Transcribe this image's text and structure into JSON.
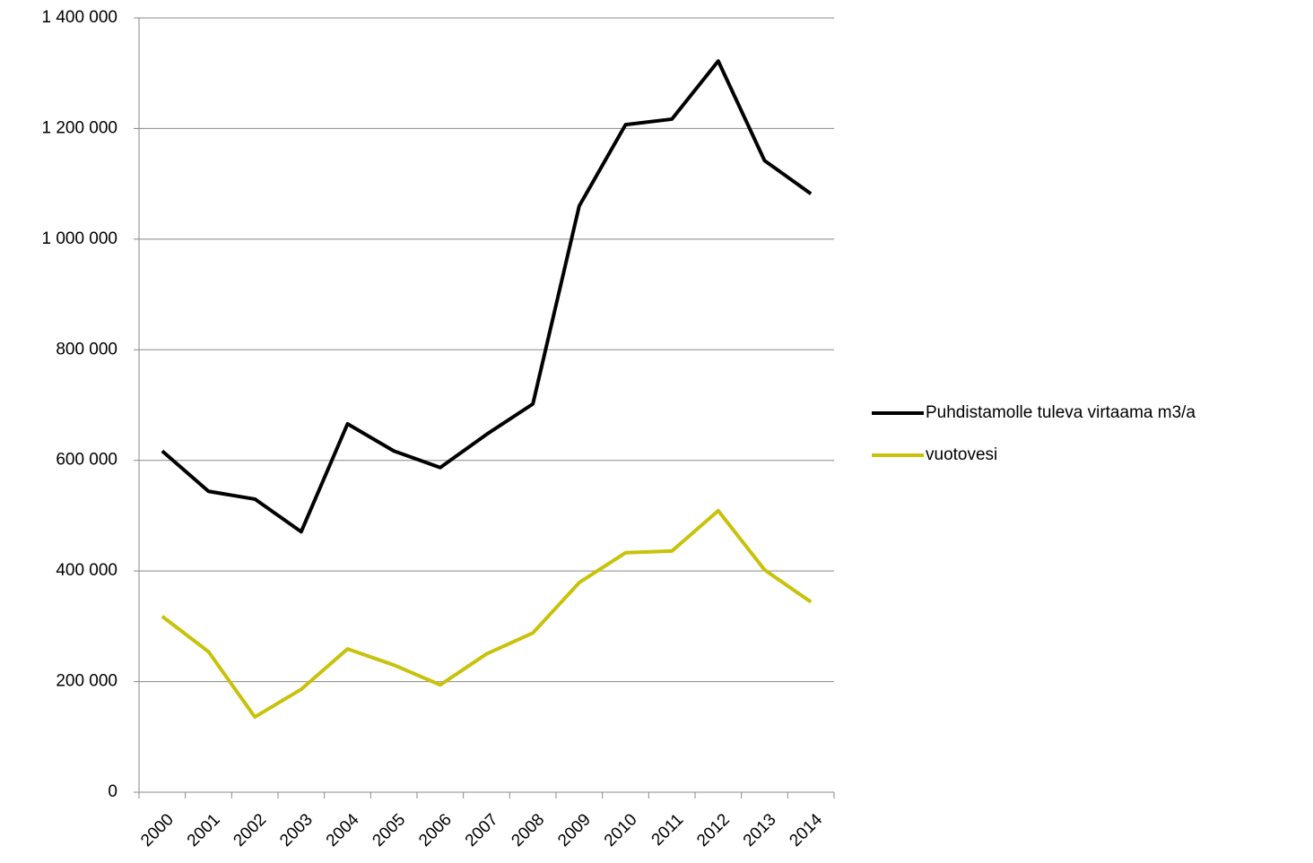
{
  "chart_data": {
    "type": "line",
    "categories": [
      "2000",
      "2001",
      "2002",
      "2003",
      "2004",
      "2005",
      "2006",
      "2007",
      "2008",
      "2009",
      "2010",
      "2011",
      "2012",
      "2013",
      "2014"
    ],
    "series": [
      {
        "name": "Puhdistamolle tuleva virtaama m3/a",
        "color": "#000000",
        "values": [
          617000,
          544000,
          530000,
          471000,
          666000,
          617000,
          587000,
          647000,
          702000,
          1060000,
          1207000,
          1217000,
          1322000,
          1142000,
          1082000
        ]
      },
      {
        "name": "vuotovesi",
        "color": "#c8c20a",
        "values": [
          318000,
          254000,
          136000,
          186000,
          259000,
          230000,
          194000,
          250000,
          288000,
          379000,
          433000,
          436000,
          509000,
          402000,
          344000
        ]
      }
    ],
    "ylim": [
      0,
      1400000
    ],
    "yticks": [
      0,
      {
        "value": 200000,
        "label": "200 000"
      },
      {
        "value": 400000,
        "label": "400 000"
      },
      {
        "value": 600000,
        "label": "600 000"
      },
      {
        "value": 800000,
        "label": "800 000"
      },
      {
        "value": 1000000,
        "label": "1 000 000"
      },
      {
        "value": 1200000,
        "label": "1 200 000"
      },
      {
        "value": 1400000,
        "label": "1 400 000"
      }
    ],
    "grid": true,
    "legend": "right"
  }
}
